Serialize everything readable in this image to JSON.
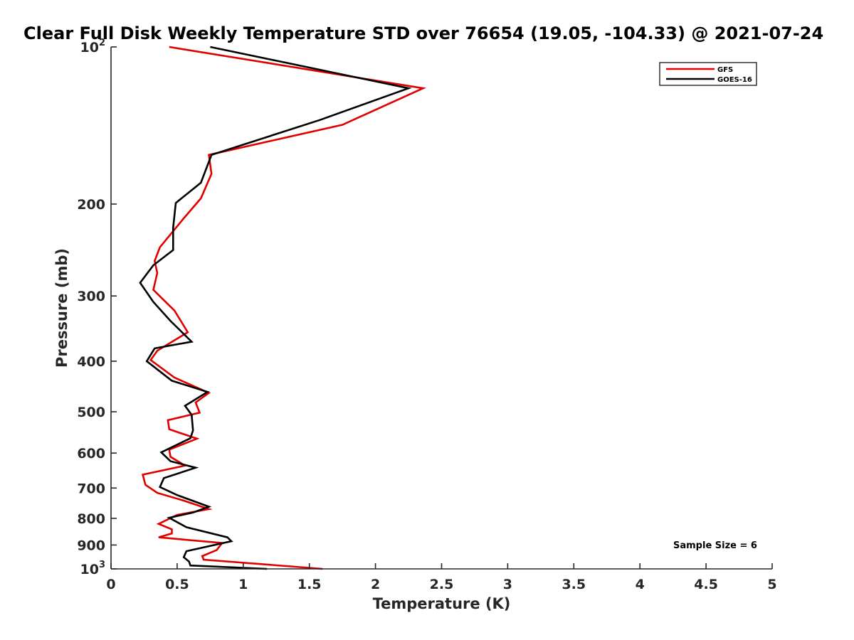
{
  "chart_data": {
    "type": "line",
    "title": "Clear Full Disk Weekly Temperature STD over 76654 (19.05, -104.33) @ 2021-07-24",
    "xlabel": "Temperature (K)",
    "ylabel": "Pressure (mb)",
    "xlim": [
      0,
      5
    ],
    "ylim": [
      100,
      1000
    ],
    "yscale": "log",
    "y_reversed": true,
    "grid": false,
    "x_ticks": [
      0,
      0.5,
      1,
      1.5,
      2,
      2.5,
      3,
      3.5,
      4,
      4.5,
      5
    ],
    "x_tick_labels": [
      "0",
      "0.5",
      "1",
      "1.5",
      "2",
      "2.5",
      "3",
      "3.5",
      "4",
      "4.5",
      "5"
    ],
    "y_ticks": [
      {
        "value": 100,
        "label": "10",
        "sup": "2"
      },
      {
        "value": 200,
        "label": "200",
        "sup": ""
      },
      {
        "value": 300,
        "label": "300",
        "sup": ""
      },
      {
        "value": 400,
        "label": "400",
        "sup": ""
      },
      {
        "value": 500,
        "label": "500",
        "sup": ""
      },
      {
        "value": 600,
        "label": "600",
        "sup": ""
      },
      {
        "value": 700,
        "label": "700",
        "sup": ""
      },
      {
        "value": 800,
        "label": "800",
        "sup": ""
      },
      {
        "value": 900,
        "label": "900",
        "sup": ""
      },
      {
        "value": 1000,
        "label": "10",
        "sup": "3"
      }
    ],
    "legend_position": "top-right",
    "annotation": "Sample Size = 6",
    "series": [
      {
        "name": "GFS",
        "color": "#e00000",
        "temperature": [
          0.44,
          2.36,
          1.75,
          0.74,
          0.76,
          0.68,
          0.55,
          0.37,
          0.33,
          0.35,
          0.32,
          0.48,
          0.58,
          0.35,
          0.3,
          0.48,
          0.74,
          0.64,
          0.67,
          0.43,
          0.44,
          0.65,
          0.44,
          0.45,
          0.56,
          0.24,
          0.26,
          0.35,
          0.55,
          0.74,
          0.5,
          0.36,
          0.46,
          0.46,
          0.36,
          0.84,
          0.8,
          0.69,
          0.7,
          1.6
        ],
        "pressure": [
          100,
          120,
          141,
          161,
          175,
          195,
          213,
          242,
          257,
          271,
          292,
          320,
          352,
          382,
          398,
          430,
          460,
          480,
          502,
          519,
          540,
          563,
          591,
          610,
          634,
          660,
          690,
          715,
          740,
          768,
          788,
          820,
          840,
          855,
          870,
          892,
          920,
          945,
          960,
          1000
        ]
      },
      {
        "name": "GOES-16",
        "color": "#000000",
        "temperature": [
          0.75,
          2.25,
          1.58,
          0.76,
          0.68,
          0.49,
          0.47,
          0.47,
          0.32,
          0.22,
          0.32,
          0.45,
          0.61,
          0.33,
          0.27,
          0.46,
          0.73,
          0.56,
          0.61,
          0.62,
          0.6,
          0.38,
          0.45,
          0.64,
          0.4,
          0.37,
          0.5,
          0.74,
          0.62,
          0.44,
          0.57,
          0.88,
          0.91,
          0.57,
          0.55,
          0.59,
          0.6,
          1.18
        ],
        "pressure": [
          100,
          120,
          138,
          161,
          182,
          199,
          222,
          245,
          262,
          283,
          308,
          335,
          367,
          378,
          400,
          436,
          458,
          487,
          507,
          543,
          562,
          598,
          622,
          640,
          670,
          697,
          722,
          760,
          780,
          798,
          832,
          870,
          885,
          925,
          950,
          968,
          985,
          1000
        ]
      }
    ]
  }
}
